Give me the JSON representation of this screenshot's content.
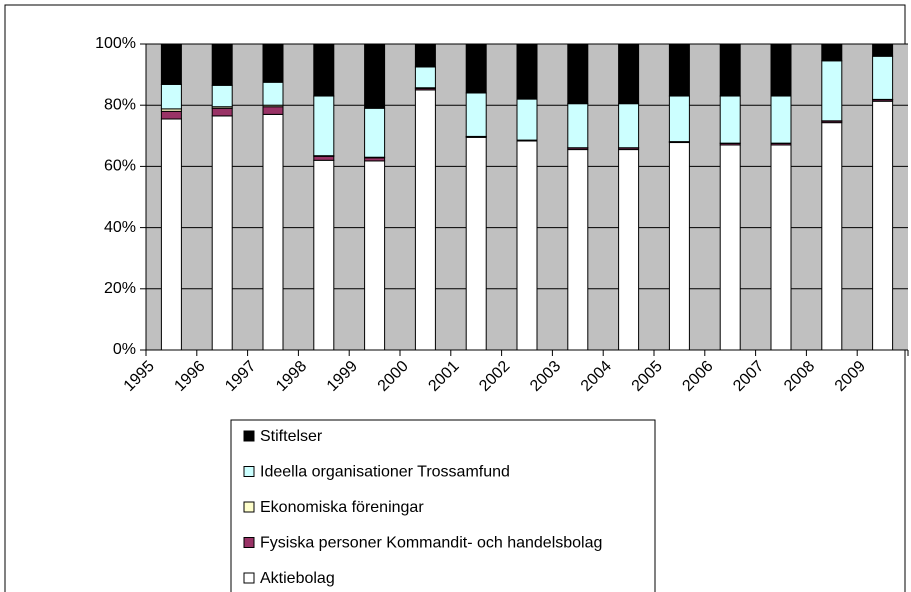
{
  "chart_data": {
    "type": "stacked_bar",
    "categories": [
      "1995",
      "1996",
      "1997",
      "1998",
      "1999",
      "2000",
      "2001",
      "2002",
      "2003",
      "2004",
      "2005",
      "2006",
      "2007",
      "2008",
      "2009"
    ],
    "series": [
      {
        "name": "Aktiebolag",
        "color": "#ffffff",
        "values": [
          75.5,
          76.5,
          77,
          62,
          61.8,
          85,
          69.5,
          68.3,
          65.5,
          65.5,
          67.8,
          67,
          67,
          74.3,
          81.3
        ]
      },
      {
        "name": "Fysiska personer Kommandit- och handelsbolag",
        "color": "#993366",
        "values": [
          2.5,
          2.5,
          2.5,
          1.3,
          1,
          0.5,
          0.2,
          0.2,
          0.5,
          0.5,
          0.2,
          0.5,
          0.5,
          0.5,
          0.5
        ]
      },
      {
        "name": "Ekonomiska föreningar",
        "color": "#ffffcc",
        "values": [
          0.8,
          0.5,
          0.5,
          0.2,
          0.2,
          0.2,
          0.1,
          0.1,
          0.1,
          0.1,
          0.1,
          0.1,
          0.1,
          0.1,
          0.1
        ]
      },
      {
        "name": "Ideella organisationer Trossamfund",
        "color": "#ccffff",
        "values": [
          8,
          7,
          7.5,
          19.5,
          16,
          6.8,
          14.2,
          13.4,
          14.4,
          14.4,
          14.9,
          15.4,
          15.4,
          19.6,
          14.1
        ]
      },
      {
        "name": "Stiftelser",
        "color": "#000000",
        "values": [
          13.2,
          13.5,
          12.5,
          17,
          21,
          7.5,
          16,
          18,
          19.5,
          19.5,
          17,
          17,
          17,
          5.5,
          4
        ]
      }
    ],
    "ylim": [
      0,
      100
    ],
    "yticks": [
      {
        "value": 0,
        "label": "0%"
      },
      {
        "value": 20,
        "label": "20%"
      },
      {
        "value": 40,
        "label": "40%"
      },
      {
        "value": 60,
        "label": "60%"
      },
      {
        "value": 80,
        "label": "80%"
      },
      {
        "value": 100,
        "label": "100%"
      }
    ],
    "grid": true,
    "plot_background": "#c0c0c0",
    "legend": "bottom"
  }
}
